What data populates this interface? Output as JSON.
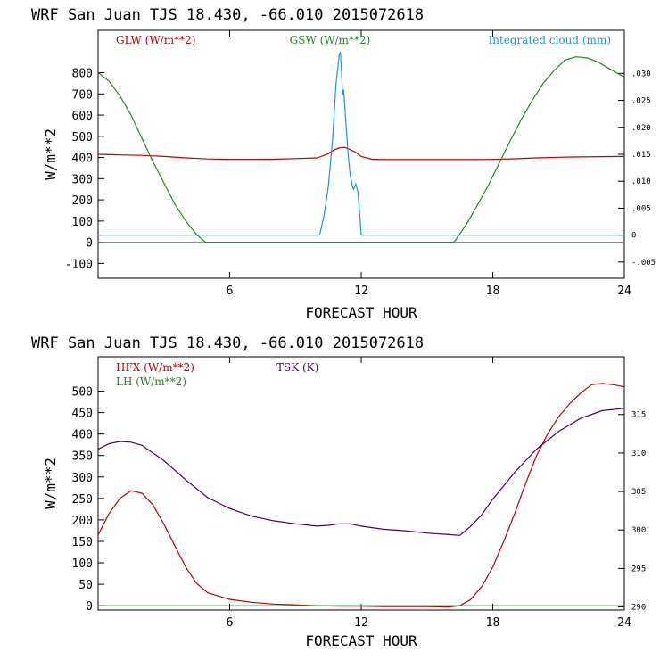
{
  "chart_data": [
    {
      "type": "line",
      "title": "WRF  San Juan TJS  18.430, -66.010  2015072618",
      "xlabel": "FORECAST HOUR",
      "ylabel": "W/m**2",
      "xlim": [
        0,
        24
      ],
      "ylim": [
        -170,
        1000
      ],
      "y2lim": [
        -0.008,
        0.038
      ],
      "x_ticks": [
        6,
        12,
        18,
        24
      ],
      "y_ticks": [
        -100,
        0,
        100,
        200,
        300,
        400,
        500,
        600,
        700,
        800
      ],
      "y2_ticks": [
        -0.005,
        0,
        0.005,
        0.01,
        0.015,
        0.02,
        0.025,
        0.03
      ],
      "y2_tick_labels": [
        "-.005",
        "0",
        ".005",
        ".010",
        ".015",
        ".020",
        ".025",
        ".030"
      ],
      "legend": "top",
      "colors": {
        "GLW": "#c00000",
        "GSW": "#228b22",
        "cloud": "#1e90ff",
        "zero": "#20a0b0"
      },
      "series": [
        {
          "name": "GLW (W/m**2)",
          "axis": "left",
          "color": "#c00000",
          "step": true,
          "x": [
            0,
            1,
            2,
            3,
            4,
            5,
            6,
            7,
            8,
            9,
            10,
            10.5,
            10.75,
            11,
            11.25,
            11.5,
            11.75,
            12,
            12.5,
            13,
            14,
            15,
            16,
            17,
            18,
            19,
            20,
            21,
            22,
            23,
            24
          ],
          "y": [
            415,
            412,
            410,
            405,
            398,
            393,
            391,
            391,
            392,
            395,
            398,
            418,
            435,
            445,
            448,
            437,
            425,
            405,
            392,
            390,
            390,
            390,
            390,
            390,
            391,
            394,
            398,
            401,
            403,
            404,
            405
          ]
        },
        {
          "name": "GSW (W/m**2)",
          "axis": "left",
          "color": "#228b22",
          "x": [
            0,
            0.5,
            1,
            1.5,
            2,
            2.5,
            3,
            3.5,
            4,
            4.5,
            4.9,
            5,
            16.2,
            16.3,
            16.8,
            17.3,
            17.8,
            18.3,
            18.8,
            19.3,
            19.8,
            20.3,
            20.8,
            21.3,
            21.8,
            22.3,
            22.8,
            23.3,
            23.8,
            24
          ],
          "y": [
            800,
            760,
            690,
            600,
            490,
            380,
            280,
            180,
            100,
            35,
            0,
            0,
            0,
            10,
            85,
            175,
            270,
            375,
            480,
            580,
            670,
            750,
            810,
            860,
            875,
            870,
            850,
            820,
            790,
            780
          ]
        },
        {
          "name": "Integrated cloud (mm)",
          "axis": "right",
          "color": "#1e90ff",
          "x": [
            0,
            10.1,
            10.3,
            10.5,
            10.7,
            10.85,
            11,
            11.05,
            11.1,
            11.15,
            11.2,
            11.3,
            11.4,
            11.5,
            11.6,
            11.65,
            11.75,
            11.85,
            11.95,
            12,
            24
          ],
          "y": [
            0,
            0,
            0.0035,
            0.009,
            0.018,
            0.028,
            0.0335,
            0.034,
            0.0305,
            0.026,
            0.027,
            0.021,
            0.015,
            0.011,
            0.009,
            0.0085,
            0.0095,
            0.008,
            0.003,
            0,
            0
          ]
        }
      ]
    },
    {
      "type": "line",
      "title": "WRF  San Juan TJS  18.430, -66.010  2015072618",
      "xlabel": "FORECAST HOUR",
      "ylabel": "W/m**2",
      "xlim": [
        0,
        24
      ],
      "ylim": [
        -10,
        580
      ],
      "y2lim": [
        289.6,
        322.5
      ],
      "x_ticks": [
        6,
        12,
        18,
        24
      ],
      "y_ticks": [
        0,
        50,
        100,
        150,
        200,
        250,
        300,
        350,
        400,
        450,
        500
      ],
      "y2_ticks": [
        290,
        295,
        300,
        305,
        310,
        315
      ],
      "legend": "top",
      "colors": {
        "HFX": "#c00000",
        "LH": "#228b22",
        "TSK": "#4b0060"
      },
      "series": [
        {
          "name": "HFX (W/m**2)",
          "axis": "left",
          "color": "#c00000",
          "x": [
            0,
            0.5,
            1,
            1.5,
            2,
            2.5,
            3,
            3.5,
            4,
            4.5,
            5,
            6,
            7,
            8,
            9,
            10,
            11,
            12,
            13,
            14,
            15,
            16,
            16.5,
            17,
            17.5,
            18,
            18.5,
            19,
            19.5,
            20,
            20.5,
            21,
            21.5,
            22,
            22.5,
            23,
            23.5,
            24
          ],
          "y": [
            165,
            215,
            250,
            268,
            262,
            235,
            190,
            140,
            90,
            52,
            30,
            15,
            8,
            4,
            2,
            0,
            -1,
            -1,
            -2,
            -2,
            -2,
            -3,
            0,
            15,
            45,
            90,
            150,
            215,
            285,
            350,
            400,
            440,
            470,
            495,
            515,
            518,
            515,
            510
          ]
        },
        {
          "name": "LH (W/m**2)",
          "axis": "left",
          "color": "#228b22",
          "x": [
            0,
            24
          ],
          "y": [
            0,
            0
          ]
        },
        {
          "name": "TSK (K)",
          "axis": "right",
          "color": "#4b0060",
          "step": true,
          "x": [
            0,
            0.5,
            1,
            1.5,
            2,
            3,
            4,
            5,
            6,
            7,
            8,
            9,
            10,
            10.5,
            11,
            11.5,
            12,
            12.5,
            13,
            14,
            15,
            16,
            16.5,
            17,
            17.5,
            18,
            19,
            20,
            21,
            22,
            23,
            24
          ],
          "y": [
            310.5,
            311.2,
            311.5,
            311.4,
            311.0,
            309.0,
            306.5,
            304.2,
            302.8,
            301.8,
            301.2,
            300.8,
            300.5,
            300.6,
            300.8,
            300.8,
            300.5,
            300.3,
            300.1,
            299.9,
            299.6,
            299.4,
            299.3,
            300.5,
            302.0,
            304.0,
            307.5,
            310.5,
            312.8,
            314.5,
            315.5,
            315.8
          ]
        }
      ]
    }
  ]
}
